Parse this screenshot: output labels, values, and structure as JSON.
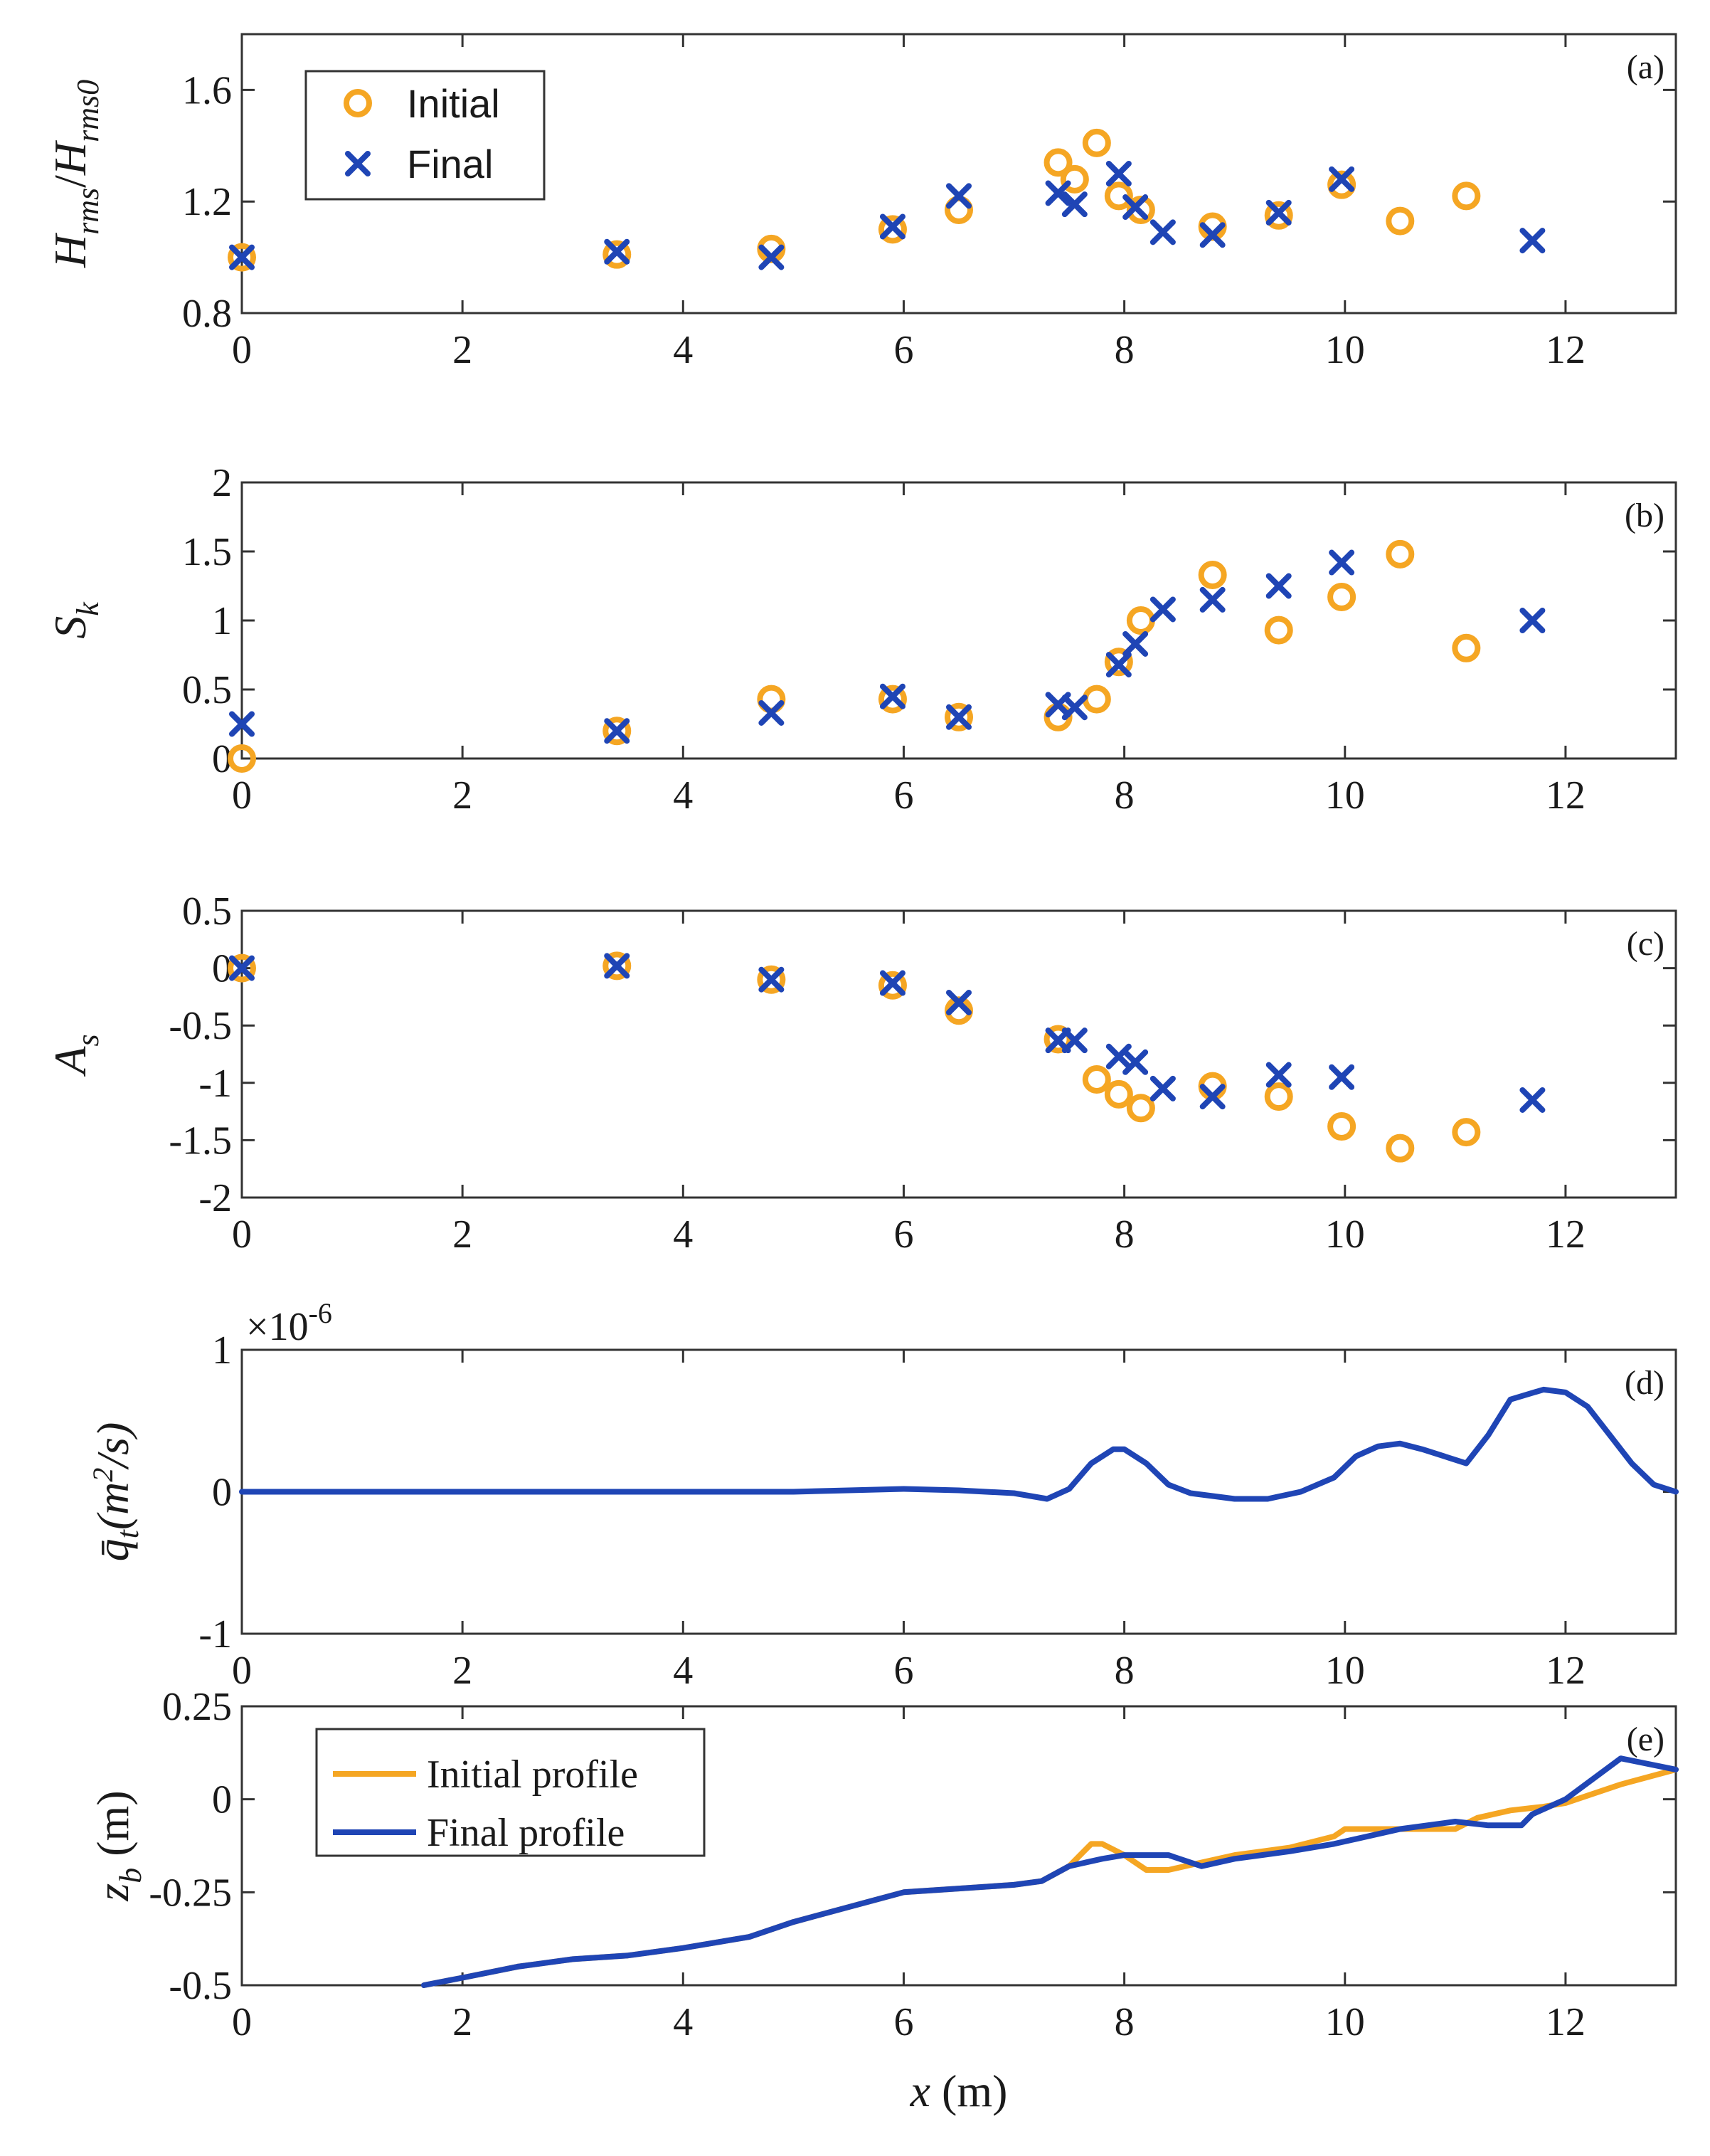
{
  "colors": {
    "initial": "#F5A623",
    "final": "#1F45B5",
    "axis": "#333333"
  },
  "chart_data": [
    {
      "id": "a",
      "type": "scatter",
      "panel_label": "(a)",
      "ylabel_html": "H_rms / H_rms0",
      "ylabel_parts": {
        "main1": "H",
        "sub1": "rms",
        "slash": "/",
        "main2": "H",
        "sub2": "rms0"
      },
      "xlim": [
        0,
        13
      ],
      "ylim": [
        0.8,
        1.8
      ],
      "xticks": [
        0,
        2,
        4,
        6,
        8,
        10,
        12
      ],
      "yticks": [
        0.8,
        1.2,
        1.6
      ],
      "ytick_labels": [
        "0.8",
        "1.2",
        "1.6"
      ],
      "legend": {
        "entries": [
          "Initial",
          "Final"
        ],
        "location": "top-left"
      },
      "series": [
        {
          "name": "Initial",
          "marker": "circle",
          "x": [
            0,
            3.4,
            4.8,
            5.9,
            6.5,
            7.4,
            7.55,
            7.75,
            7.95,
            8.15,
            8.8,
            9.4,
            9.97,
            10.5,
            11.1
          ],
          "y": [
            1.0,
            1.01,
            1.03,
            1.1,
            1.17,
            1.34,
            1.28,
            1.41,
            1.22,
            1.17,
            1.11,
            1.15,
            1.26,
            1.13,
            1.22
          ]
        },
        {
          "name": "Final",
          "marker": "x",
          "x": [
            0,
            3.4,
            4.8,
            5.9,
            6.5,
            7.4,
            7.55,
            7.95,
            8.1,
            8.35,
            8.8,
            9.4,
            9.97,
            11.7
          ],
          "y": [
            1.0,
            1.02,
            1.0,
            1.11,
            1.22,
            1.23,
            1.19,
            1.3,
            1.18,
            1.09,
            1.08,
            1.16,
            1.28,
            1.06
          ]
        }
      ]
    },
    {
      "id": "b",
      "type": "scatter",
      "panel_label": "(b)",
      "ylabel_parts": {
        "main": "S",
        "sub": "k"
      },
      "xlim": [
        0,
        13
      ],
      "ylim": [
        0,
        2
      ],
      "xticks": [
        0,
        2,
        4,
        6,
        8,
        10,
        12
      ],
      "yticks": [
        0,
        0.5,
        1,
        1.5,
        2
      ],
      "ytick_labels": [
        "0",
        "0.5",
        "1",
        "1.5",
        "2"
      ],
      "series": [
        {
          "name": "Initial",
          "marker": "circle",
          "x": [
            0,
            3.4,
            4.8,
            5.9,
            6.5,
            7.4,
            7.75,
            7.95,
            8.15,
            8.8,
            9.4,
            9.97,
            10.5,
            11.1
          ],
          "y": [
            0.0,
            0.2,
            0.43,
            0.43,
            0.3,
            0.3,
            0.43,
            0.7,
            1.0,
            1.33,
            0.93,
            1.17,
            1.48,
            0.8
          ]
        },
        {
          "name": "Final",
          "marker": "x",
          "x": [
            0,
            3.4,
            4.8,
            5.9,
            6.5,
            7.4,
            7.55,
            7.95,
            8.1,
            8.35,
            8.8,
            9.4,
            9.97,
            11.7
          ],
          "y": [
            0.25,
            0.2,
            0.33,
            0.45,
            0.3,
            0.39,
            0.37,
            0.68,
            0.83,
            1.08,
            1.15,
            1.25,
            1.42,
            1.0
          ]
        }
      ]
    },
    {
      "id": "c",
      "type": "scatter",
      "panel_label": "(c)",
      "ylabel_parts": {
        "main": "A",
        "sub": "s"
      },
      "xlim": [
        0,
        13
      ],
      "ylim": [
        -2,
        0.5
      ],
      "xticks": [
        0,
        2,
        4,
        6,
        8,
        10,
        12
      ],
      "yticks": [
        -2,
        -1.5,
        -1,
        -0.5,
        0,
        0.5
      ],
      "ytick_labels": [
        "-2",
        "-1.5",
        "-1",
        "-0.5",
        "0",
        "0.5"
      ],
      "series": [
        {
          "name": "Initial",
          "marker": "circle",
          "x": [
            0,
            3.4,
            4.8,
            5.9,
            6.5,
            7.4,
            7.75,
            7.95,
            8.15,
            8.8,
            9.4,
            9.97,
            10.5,
            11.1
          ],
          "y": [
            0.0,
            0.02,
            -0.1,
            -0.15,
            -0.37,
            -0.62,
            -0.97,
            -1.1,
            -1.22,
            -1.03,
            -1.12,
            -1.38,
            -1.57,
            -1.43
          ]
        },
        {
          "name": "Final",
          "marker": "x",
          "x": [
            0,
            3.4,
            4.8,
            5.9,
            6.5,
            7.4,
            7.55,
            7.95,
            8.1,
            8.35,
            8.8,
            9.4,
            9.97,
            11.7
          ],
          "y": [
            0.0,
            0.02,
            -0.1,
            -0.13,
            -0.3,
            -0.63,
            -0.63,
            -0.77,
            -0.82,
            -1.05,
            -1.12,
            -0.93,
            -0.95,
            -1.15
          ]
        }
      ]
    },
    {
      "id": "d",
      "type": "line",
      "panel_label": "(d)",
      "ylabel_parts": {
        "main": "q̄",
        "sub": "t",
        "rest1": "(m",
        "sup": "2",
        "rest2": "/s)"
      },
      "multiplier_text": "×10",
      "multiplier_exp": "-6",
      "xlim": [
        0,
        13
      ],
      "ylim": [
        -1,
        1
      ],
      "xticks": [
        0,
        2,
        4,
        6,
        8,
        10,
        12
      ],
      "yticks": [
        -1,
        0,
        1
      ],
      "ytick_labels": [
        "-1",
        "0",
        "1"
      ],
      "series": [
        {
          "name": "Final",
          "style": "line",
          "x": [
            0,
            1,
            2,
            3,
            4,
            5,
            5.5,
            6.0,
            6.5,
            7.0,
            7.3,
            7.5,
            7.7,
            7.9,
            8.0,
            8.2,
            8.4,
            8.6,
            9.0,
            9.3,
            9.6,
            9.9,
            10.1,
            10.3,
            10.5,
            10.7,
            10.9,
            11.1,
            11.3,
            11.5,
            11.8,
            12.0,
            12.2,
            12.4,
            12.6,
            12.8,
            13.0
          ],
          "y": [
            0,
            0,
            0,
            0,
            0,
            0,
            0.01,
            0.02,
            0.01,
            -0.01,
            -0.05,
            0.02,
            0.2,
            0.3,
            0.3,
            0.2,
            0.05,
            -0.01,
            -0.05,
            -0.05,
            0.0,
            0.1,
            0.25,
            0.32,
            0.34,
            0.3,
            0.25,
            0.2,
            0.4,
            0.65,
            0.72,
            0.7,
            0.6,
            0.4,
            0.2,
            0.05,
            0.0
          ]
        }
      ]
    },
    {
      "id": "e",
      "type": "line",
      "panel_label": "(e)",
      "ylabel_parts": {
        "main": "z",
        "sub": "b",
        "rest": " (m)"
      },
      "xlabel_parts": {
        "var": "x",
        "unit": " (m)"
      },
      "xlim": [
        0,
        13
      ],
      "ylim": [
        -0.5,
        0.25
      ],
      "xticks": [
        0,
        2,
        4,
        6,
        8,
        10,
        12
      ],
      "yticks": [
        -0.5,
        -0.25,
        0,
        0.25
      ],
      "ytick_labels": [
        "-0.5",
        "-0.25",
        "0",
        "0.25"
      ],
      "legend": {
        "entries": [
          "Initial profile",
          "Final profile"
        ],
        "location": "top-left"
      },
      "series": [
        {
          "name": "Initial profile",
          "style": "line",
          "x": [
            1.65,
            2.0,
            2.5,
            3.0,
            3.5,
            4.0,
            4.6,
            5.0,
            5.5,
            6.0,
            6.5,
            7.0,
            7.25,
            7.5,
            7.7,
            7.8,
            8.0,
            8.2,
            8.4,
            8.7,
            9.0,
            9.5,
            9.9,
            10.0,
            10.5,
            11.0,
            11.2,
            11.5,
            11.8,
            12.0,
            12.5,
            13.0
          ],
          "y": [
            -0.5,
            -0.48,
            -0.45,
            -0.43,
            -0.42,
            -0.4,
            -0.37,
            -0.33,
            -0.29,
            -0.25,
            -0.24,
            -0.23,
            -0.22,
            -0.18,
            -0.12,
            -0.12,
            -0.15,
            -0.19,
            -0.19,
            -0.17,
            -0.15,
            -0.13,
            -0.1,
            -0.08,
            -0.08,
            -0.08,
            -0.05,
            -0.03,
            -0.02,
            -0.01,
            0.04,
            0.08
          ]
        },
        {
          "name": "Final profile",
          "style": "line",
          "x": [
            1.65,
            2.0,
            2.5,
            3.0,
            3.5,
            4.0,
            4.6,
            5.0,
            5.5,
            6.0,
            6.5,
            7.0,
            7.25,
            7.5,
            7.8,
            8.0,
            8.4,
            8.7,
            9.0,
            9.5,
            9.9,
            10.5,
            11.0,
            11.3,
            11.6,
            11.7,
            12.0,
            12.5,
            13.0
          ],
          "y": [
            -0.5,
            -0.48,
            -0.45,
            -0.43,
            -0.42,
            -0.4,
            -0.37,
            -0.33,
            -0.29,
            -0.25,
            -0.24,
            -0.23,
            -0.22,
            -0.18,
            -0.16,
            -0.15,
            -0.15,
            -0.18,
            -0.16,
            -0.14,
            -0.12,
            -0.08,
            -0.06,
            -0.07,
            -0.07,
            -0.04,
            0.0,
            0.11,
            0.08
          ]
        }
      ]
    }
  ]
}
